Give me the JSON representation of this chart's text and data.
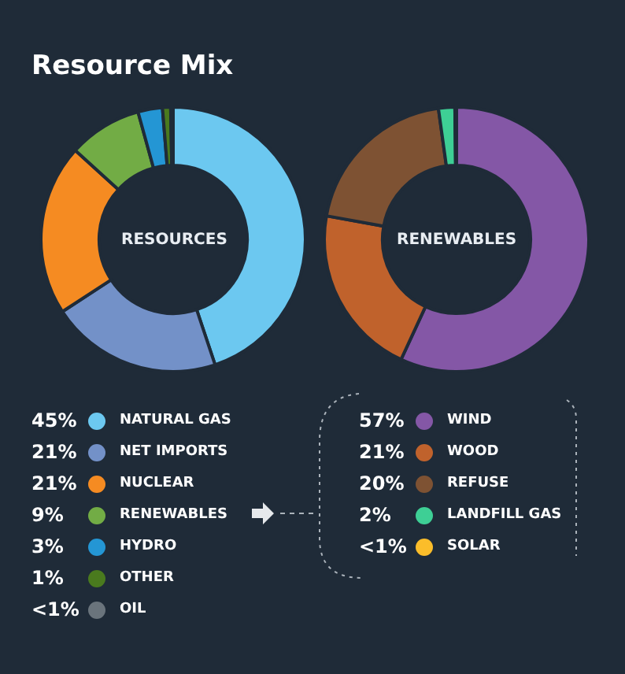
{
  "chart_data": [
    {
      "type": "donut",
      "title": "Resource Mix",
      "annotations": [
        "RESOURCES"
      ],
      "legend": "bottom",
      "categories": [
        "NATURAL GAS",
        "NET IMPORTS",
        "NUCLEAR",
        "RENEWABLES",
        "HYDRO",
        "OTHER",
        "OIL"
      ],
      "values": [
        45,
        21,
        21,
        9,
        3,
        1,
        0.3
      ],
      "value_labels": [
        "45%",
        "21%",
        "21%",
        "9%",
        "3%",
        "1%",
        "<1%"
      ],
      "colors": [
        "#6cc8f0",
        "#7391c8",
        "#f58b22",
        "#72ac45",
        "#2496d4",
        "#4a7a1e",
        "#6a747c"
      ]
    },
    {
      "type": "donut",
      "annotations": [
        "RENEWABLES"
      ],
      "legend": "bottom",
      "categories": [
        "WIND",
        "WOOD",
        "REFUSE",
        "LANDFILL GAS",
        "SOLAR"
      ],
      "values": [
        57,
        21,
        20,
        2,
        0.2
      ],
      "value_labels": [
        "57%",
        "21%",
        "20%",
        "2%",
        "<1%"
      ],
      "colors": [
        "#8457a6",
        "#c0622c",
        "#7e5233",
        "#3ecf95",
        "#fbbd2a"
      ]
    }
  ]
}
